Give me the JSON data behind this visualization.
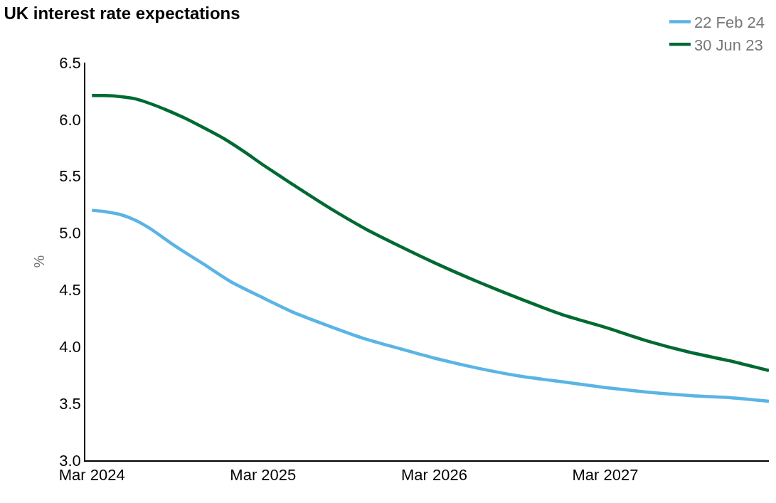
{
  "chart_data": {
    "type": "line",
    "title": "UK interest rate expectations",
    "ylabel": "%",
    "xlim": [
      "2024-02-16",
      "2028-02-13"
    ],
    "xticks": [
      {
        "value": "2024-03-01",
        "label": "Mar 2024"
      },
      {
        "value": "2025-03-01",
        "label": "Mar 2025"
      },
      {
        "value": "2026-03-01",
        "label": "Mar 2026"
      },
      {
        "value": "2027-03-01",
        "label": "Mar 2027"
      }
    ],
    "ylim": [
      3.0,
      6.5
    ],
    "yticks": [
      {
        "value": 3.0,
        "label": "3.0"
      },
      {
        "value": 3.5,
        "label": "3.5"
      },
      {
        "value": 4.0,
        "label": "4.0"
      },
      {
        "value": 4.5,
        "label": "4.5"
      },
      {
        "value": 5.0,
        "label": "5.0"
      },
      {
        "value": 5.5,
        "label": "5.5"
      },
      {
        "value": 6.0,
        "label": "6.0"
      },
      {
        "value": 6.5,
        "label": "6.5"
      }
    ],
    "legend": "top right",
    "marker": "none",
    "line_style": "solid",
    "series": [
      {
        "name": "22 Feb 24",
        "color": "#5ab4e5",
        "x": [
          "2024-03-01",
          "2024-03-27",
          "2024-05-03",
          "2024-06-03",
          "2024-07-03",
          "2024-08-24",
          "2024-10-24",
          "2024-12-23",
          "2025-03-01",
          "2025-05-06",
          "2025-07-21",
          "2025-10-04",
          "2025-12-20",
          "2026-03-01",
          "2026-06-03",
          "2026-09-01",
          "2026-12-01",
          "2027-03-01",
          "2027-05-30",
          "2027-08-29",
          "2027-11-27",
          "2028-02-13"
        ],
        "values": [
          5.2,
          5.19,
          5.16,
          5.11,
          5.04,
          4.89,
          4.73,
          4.57,
          4.43,
          4.3,
          4.18,
          4.07,
          3.98,
          3.9,
          3.81,
          3.74,
          3.69,
          3.64,
          3.6,
          3.57,
          3.55,
          3.52
        ]
      },
      {
        "name": "30 Jun 23",
        "color": "#006a32",
        "x": [
          "2024-03-01",
          "2024-03-27",
          "2024-05-03",
          "2024-06-03",
          "2024-07-03",
          "2024-08-09",
          "2024-09-16",
          "2024-10-24",
          "2024-12-08",
          "2025-01-22",
          "2025-03-01",
          "2025-05-06",
          "2025-07-21",
          "2025-10-04",
          "2025-12-20",
          "2026-03-01",
          "2026-06-03",
          "2026-09-01",
          "2026-12-01",
          "2027-03-01",
          "2027-05-30",
          "2027-08-29",
          "2027-11-27",
          "2028-02-13"
        ],
        "values": [
          6.21,
          6.21,
          6.2,
          6.18,
          6.14,
          6.08,
          6.01,
          5.93,
          5.83,
          5.71,
          5.6,
          5.42,
          5.22,
          5.04,
          4.88,
          4.74,
          4.57,
          4.42,
          4.28,
          4.17,
          4.05,
          3.95,
          3.87,
          3.79
        ]
      }
    ]
  }
}
